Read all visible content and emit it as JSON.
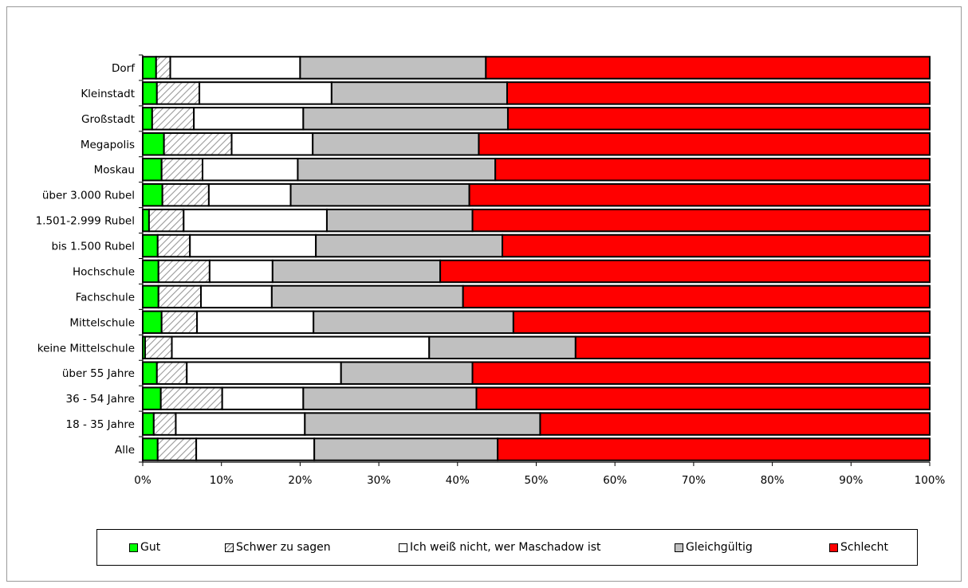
{
  "chart_data": {
    "type": "bar",
    "orientation": "horizontal",
    "stacked": "percent",
    "categories": [
      "Dorf",
      "Kleinstadt",
      "Großstadt",
      "Megapolis",
      "Moskau",
      "über 3.000 Rubel",
      "1.501-2.999 Rubel",
      "bis 1.500 Rubel",
      "Hochschule",
      "Fachschule",
      "Mittelschule",
      "keine Mittelschule",
      "über 55 Jahre",
      "36 - 54 Jahre",
      "18 - 35 Jahre",
      "Alle"
    ],
    "series": [
      {
        "name": "Gut",
        "color": "#00ff00",
        "pattern": "solid",
        "values": [
          1.7,
          1.8,
          1.2,
          2.7,
          2.4,
          2.5,
          0.8,
          1.9,
          2.0,
          2.0,
          2.4,
          0.3,
          1.8,
          2.3,
          1.4,
          1.9
        ]
      },
      {
        "name": "Schwer zu sagen",
        "color": "#ffffff",
        "pattern": "diagonal-hatch",
        "values": [
          1.8,
          5.4,
          5.3,
          8.6,
          5.2,
          5.9,
          4.4,
          4.1,
          6.5,
          5.4,
          4.5,
          3.4,
          3.8,
          7.8,
          2.8,
          4.9
        ]
      },
      {
        "name": "Ich weiß nicht, wer Maschadow ist",
        "color": "#ffffff",
        "pattern": "solid",
        "values": [
          16.5,
          16.8,
          13.9,
          10.3,
          12.1,
          10.4,
          18.2,
          16.0,
          8.0,
          9.0,
          14.8,
          32.7,
          19.6,
          10.3,
          16.4,
          15.0
        ]
      },
      {
        "name": "Gleichgültig",
        "color": "#c0c0c0",
        "pattern": "solid",
        "values": [
          23.6,
          22.3,
          26.0,
          21.1,
          25.1,
          22.7,
          18.5,
          23.7,
          21.3,
          24.3,
          25.4,
          18.6,
          16.7,
          22.0,
          29.9,
          23.3
        ]
      },
      {
        "name": "Schlecht",
        "color": "#ff0000",
        "pattern": "solid",
        "values": [
          56.4,
          53.7,
          53.6,
          57.3,
          55.2,
          58.5,
          58.1,
          54.3,
          62.2,
          59.3,
          52.9,
          45.0,
          58.1,
          57.6,
          49.5,
          54.9
        ]
      }
    ],
    "xlim": [
      0,
      100
    ],
    "x_ticks": [
      "0%",
      "10%",
      "20%",
      "30%",
      "40%",
      "50%",
      "60%",
      "70%",
      "80%",
      "90%",
      "100%"
    ],
    "grid": false,
    "legend_position": "bottom"
  }
}
